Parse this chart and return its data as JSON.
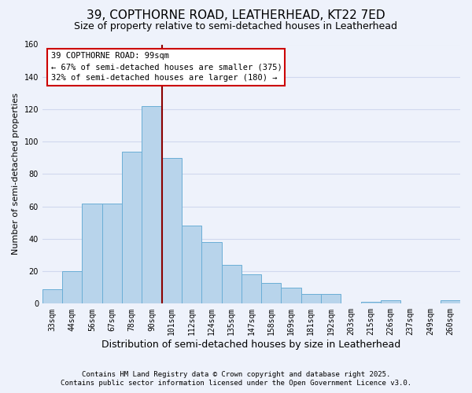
{
  "title": "39, COPTHORNE ROAD, LEATHERHEAD, KT22 7ED",
  "subtitle": "Size of property relative to semi-detached houses in Leatherhead",
  "xlabel": "Distribution of semi-detached houses by size in Leatherhead",
  "ylabel": "Number of semi-detached properties",
  "categories": [
    "33sqm",
    "44sqm",
    "56sqm",
    "67sqm",
    "78sqm",
    "90sqm",
    "101sqm",
    "112sqm",
    "124sqm",
    "135sqm",
    "147sqm",
    "158sqm",
    "169sqm",
    "181sqm",
    "192sqm",
    "203sqm",
    "215sqm",
    "226sqm",
    "237sqm",
    "249sqm",
    "260sqm"
  ],
  "values": [
    9,
    20,
    62,
    62,
    94,
    122,
    90,
    48,
    38,
    24,
    18,
    13,
    10,
    6,
    6,
    0,
    1,
    2,
    0,
    0,
    2
  ],
  "bar_color": "#b8d4eb",
  "bar_edge_color": "#6aaed6",
  "vline_x_index": 6,
  "vline_color": "#8b0000",
  "annotation_line1": "39 COPTHORNE ROAD: 99sqm",
  "annotation_line2": "← 67% of semi-detached houses are smaller (375)",
  "annotation_line3": "32% of semi-detached houses are larger (180) →",
  "annotation_box_color": "white",
  "annotation_box_edge_color": "#cc0000",
  "ylim": [
    0,
    160
  ],
  "yticks": [
    0,
    20,
    40,
    60,
    80,
    100,
    120,
    140,
    160
  ],
  "background_color": "#eef2fb",
  "grid_color": "#d0d8ee",
  "footer_line1": "Contains HM Land Registry data © Crown copyright and database right 2025.",
  "footer_line2": "Contains public sector information licensed under the Open Government Licence v3.0.",
  "title_fontsize": 11,
  "subtitle_fontsize": 9,
  "xlabel_fontsize": 9,
  "ylabel_fontsize": 8,
  "tick_fontsize": 7,
  "annotation_fontsize": 7.5,
  "footer_fontsize": 6.5
}
